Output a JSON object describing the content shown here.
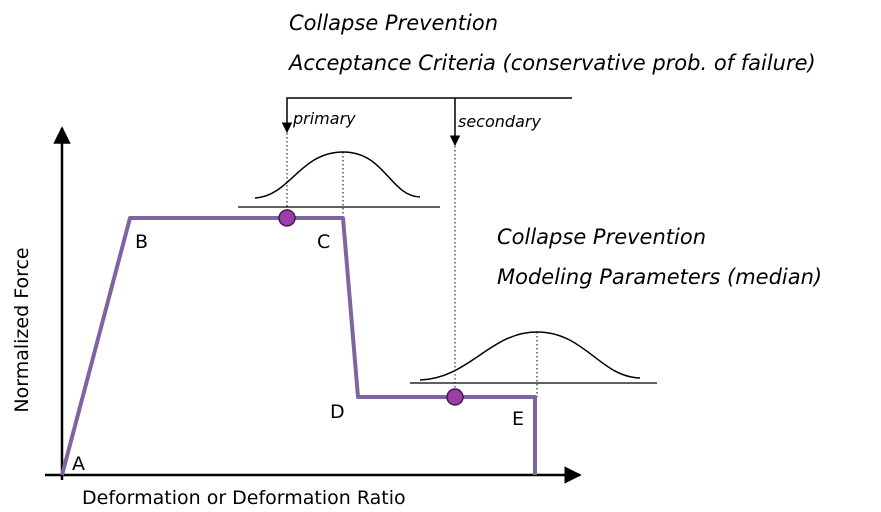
{
  "axes": {
    "y_label": "Normalized Force",
    "x_label": "Deformation or Deformation Ratio"
  },
  "points": [
    "A",
    "B",
    "C",
    "D",
    "E"
  ],
  "acceptance_criteria": {
    "lines": [
      "Collapse Prevention",
      "Acceptance Criteria (conservative prob. of failure)"
    ],
    "primary": "primary",
    "secondary": "secondary"
  },
  "modeling_parameters": {
    "lines": [
      "Collapse Prevention",
      "Modeling Parameters (median)"
    ]
  }
}
